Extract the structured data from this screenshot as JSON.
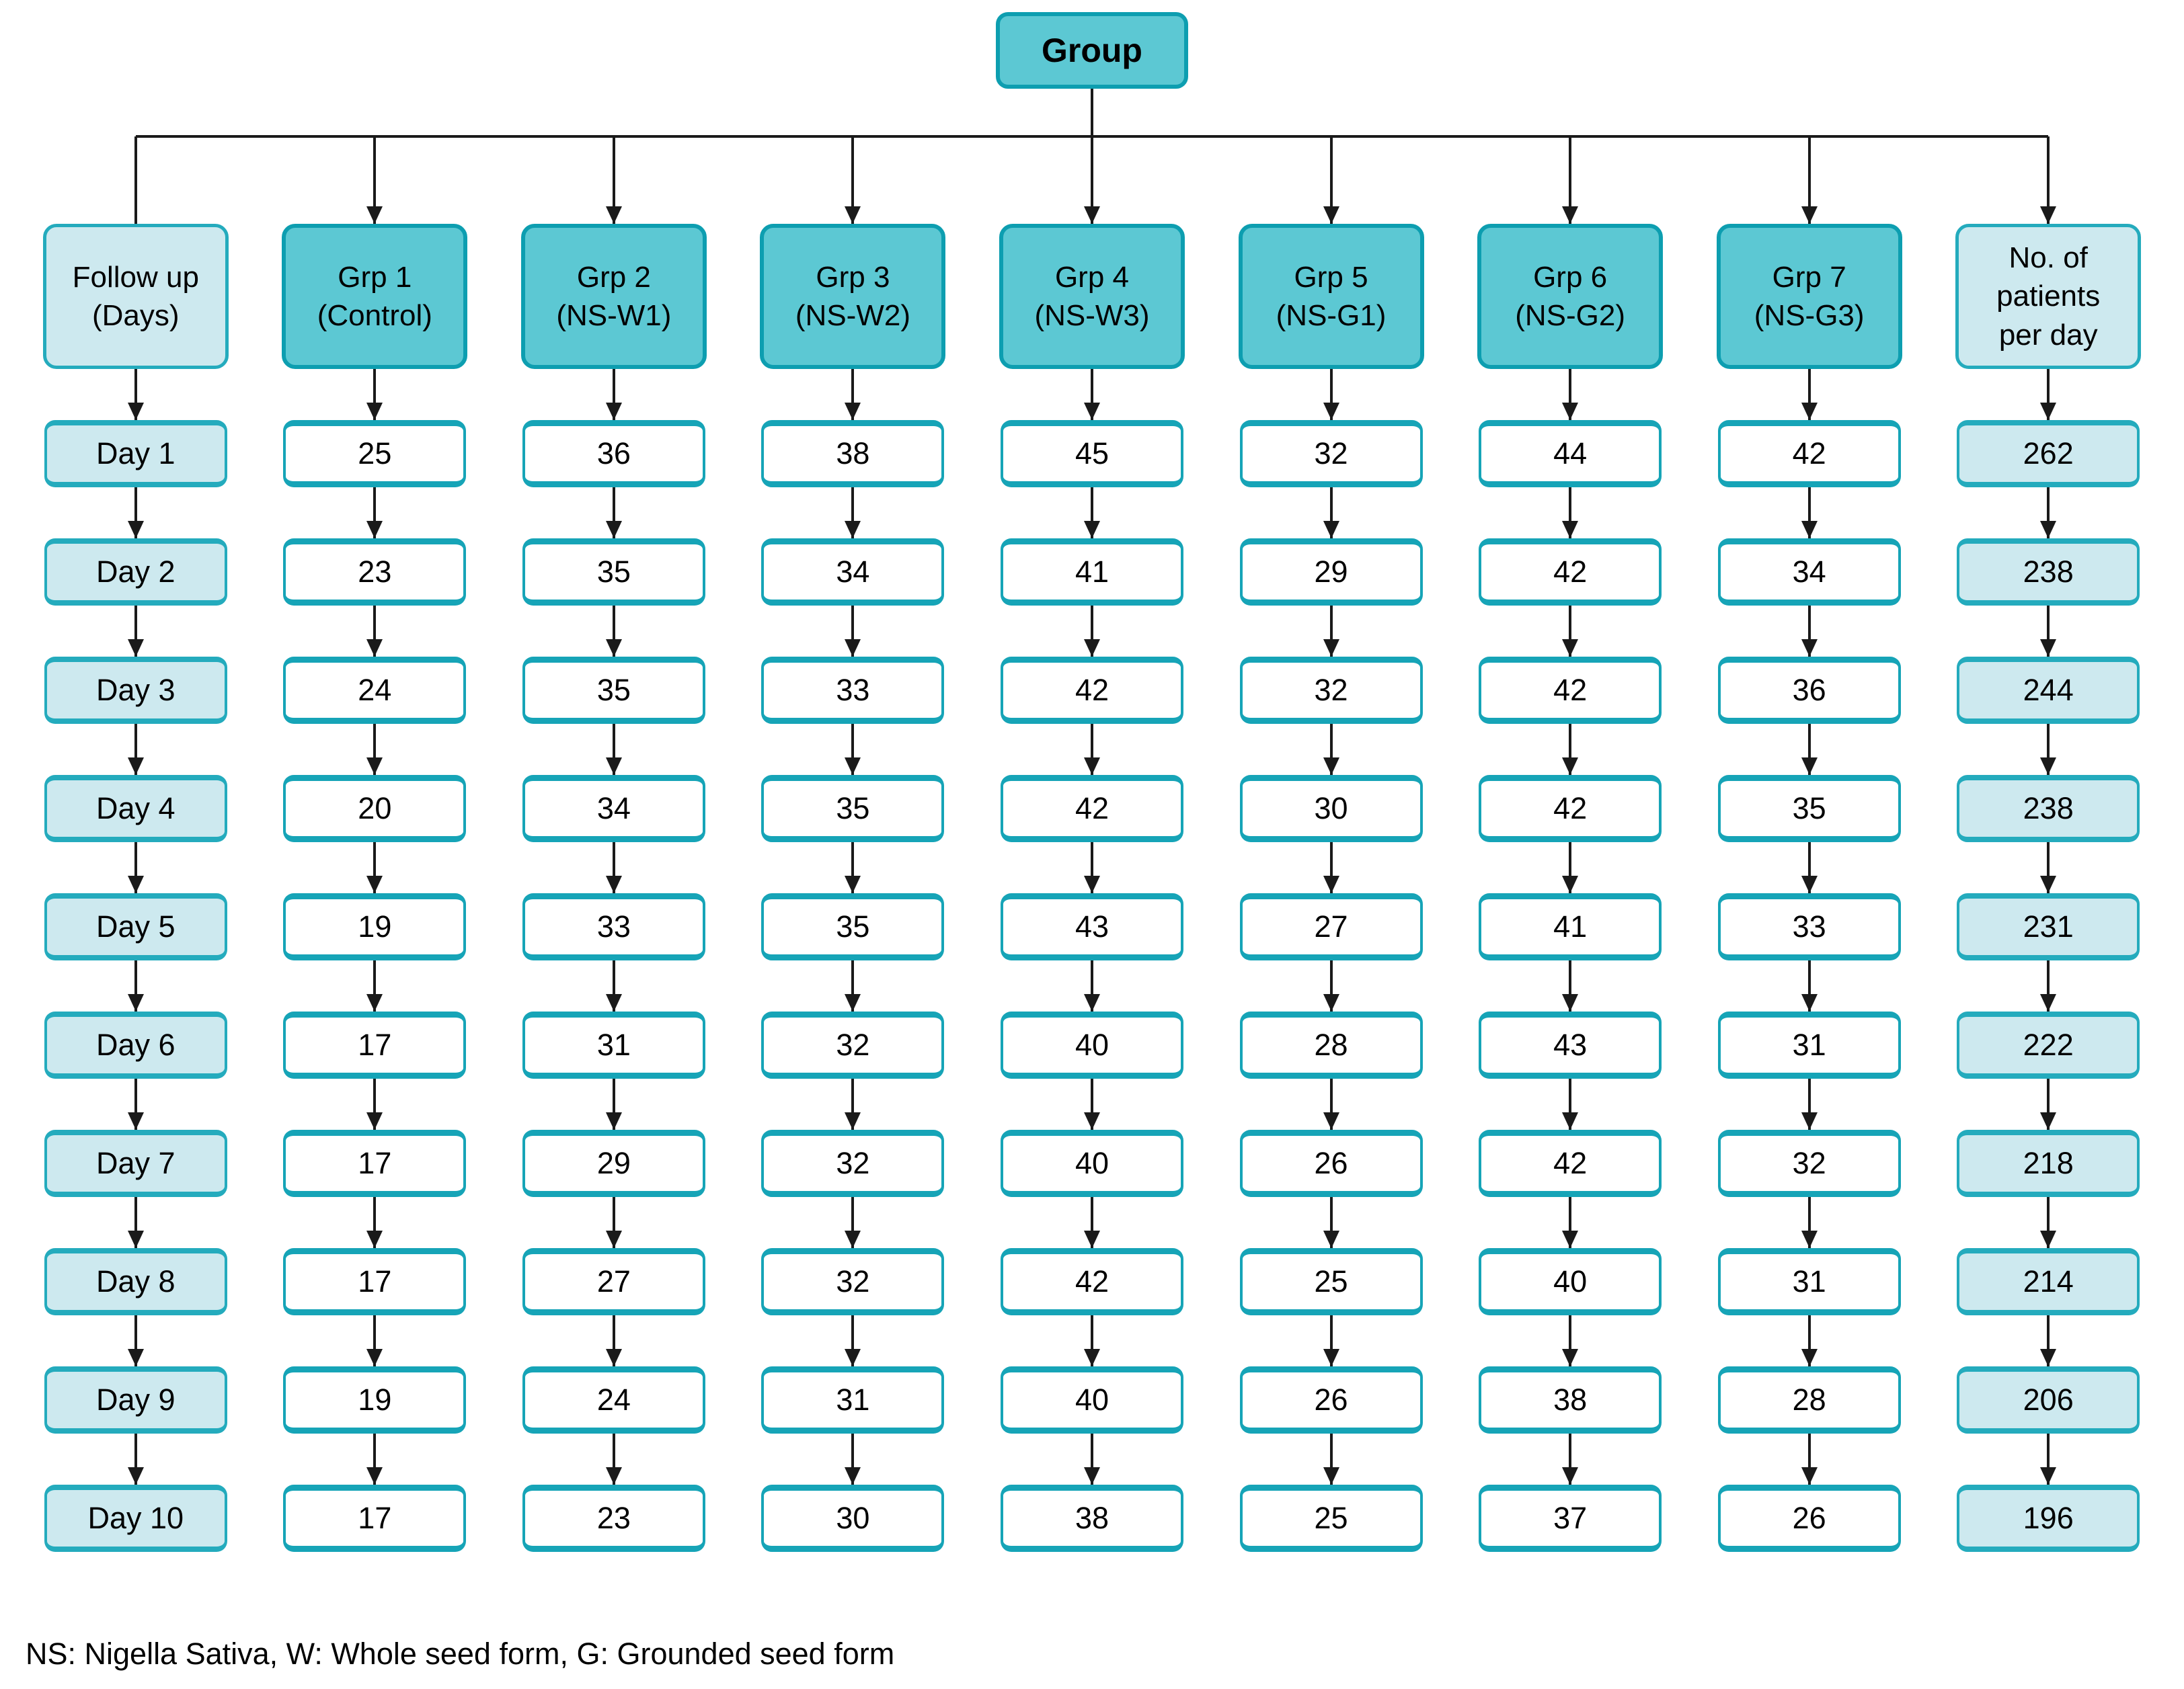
{
  "group_label": "Group",
  "footnote": "NS: Nigella Sativa, W: Whole seed form, G: Grounded seed form",
  "colors": {
    "teal_fill": "#5cc8d3",
    "teal_border": "#0d9eb0",
    "light_fill": "#cde9ef",
    "light_border": "#24abbd",
    "value_border": "#16a4b7",
    "line": "#1a1a1a"
  },
  "columns": [
    {
      "id": "followup",
      "header": "Follow up\n(Days)",
      "style": "light",
      "cell_style": "light",
      "top_arrow": false,
      "cells": [
        "Day 1",
        "Day 2",
        "Day 3",
        "Day 4",
        "Day 5",
        "Day 6",
        "Day 7",
        "Day 8",
        "Day 9",
        "Day 10"
      ]
    },
    {
      "id": "grp1",
      "header": "Grp 1\n(Control)",
      "style": "teal",
      "cell_style": "white",
      "top_arrow": true,
      "cells": [
        "25",
        "23",
        "24",
        "20",
        "19",
        "17",
        "17",
        "17",
        "19",
        "17"
      ]
    },
    {
      "id": "grp2",
      "header": "Grp 2\n(NS-W1)",
      "style": "teal",
      "cell_style": "white",
      "top_arrow": true,
      "cells": [
        "36",
        "35",
        "35",
        "34",
        "33",
        "31",
        "29",
        "27",
        "24",
        "23"
      ]
    },
    {
      "id": "grp3",
      "header": "Grp 3\n(NS-W2)",
      "style": "teal",
      "cell_style": "white",
      "top_arrow": true,
      "cells": [
        "38",
        "34",
        "33",
        "35",
        "35",
        "32",
        "32",
        "32",
        "31",
        "30"
      ]
    },
    {
      "id": "grp4",
      "header": "Grp 4\n(NS-W3)",
      "style": "teal",
      "cell_style": "white",
      "top_arrow": true,
      "cells": [
        "45",
        "41",
        "42",
        "42",
        "43",
        "40",
        "40",
        "42",
        "40",
        "38"
      ]
    },
    {
      "id": "grp5",
      "header": "Grp 5\n(NS-G1)",
      "style": "teal",
      "cell_style": "white",
      "top_arrow": true,
      "cells": [
        "32",
        "29",
        "32",
        "30",
        "27",
        "28",
        "26",
        "25",
        "26",
        "25"
      ]
    },
    {
      "id": "grp6",
      "header": "Grp 6\n(NS-G2)",
      "style": "teal",
      "cell_style": "white",
      "top_arrow": true,
      "cells": [
        "44",
        "42",
        "42",
        "42",
        "41",
        "43",
        "42",
        "40",
        "38",
        "37"
      ]
    },
    {
      "id": "grp7",
      "header": "Grp 7\n(NS-G3)",
      "style": "teal",
      "cell_style": "white",
      "top_arrow": true,
      "cells": [
        "42",
        "34",
        "36",
        "35",
        "33",
        "31",
        "32",
        "31",
        "28",
        "26"
      ]
    },
    {
      "id": "patients",
      "header": "No. of\npatients\nper day",
      "style": "light",
      "cell_style": "light",
      "top_arrow": true,
      "cells": [
        "262",
        "238",
        "244",
        "238",
        "231",
        "222",
        "218",
        "214",
        "206",
        "196"
      ]
    }
  ]
}
